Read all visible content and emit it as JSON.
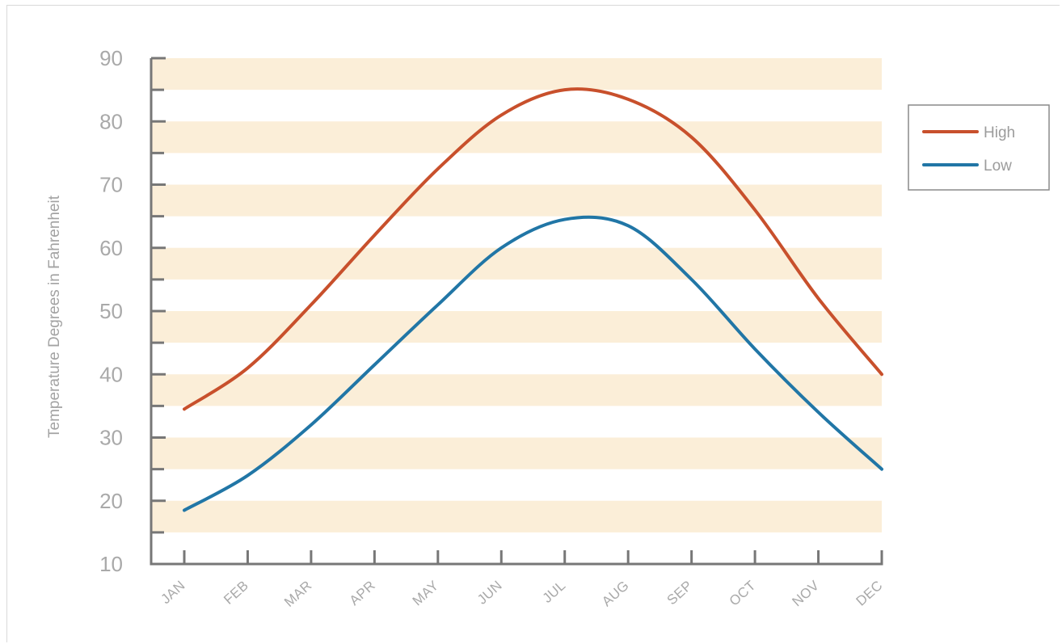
{
  "chart_data": {
    "type": "line",
    "title": "",
    "xlabel": "",
    "ylabel": "Temperature Degrees in Fahrenheit",
    "categories": [
      "JAN",
      "FEB",
      "MAR",
      "APR",
      "MAY",
      "JUN",
      "JUL",
      "AUG",
      "SEP",
      "OCT",
      "NOV",
      "DEC"
    ],
    "ylim": [
      10,
      90
    ],
    "yticks": [
      "10",
      "20",
      "30",
      "40",
      "50",
      "60",
      "70",
      "80",
      "90"
    ],
    "series": [
      {
        "name": "High",
        "color": "#c8502c",
        "values": [
          34.5,
          41,
          51,
          62,
          72.5,
          81,
          85,
          83.5,
          77.5,
          66,
          52,
          40
        ]
      },
      {
        "name": "Low",
        "color": "#2176a6",
        "values": [
          18.5,
          24,
          32,
          41.5,
          51,
          60,
          64.5,
          63.5,
          55,
          44,
          34,
          25
        ]
      }
    ],
    "grid": "alternating horizontal bands",
    "band_color": "#fbeed8",
    "axis_color": "#777777",
    "legend": {
      "placement": "right"
    }
  }
}
